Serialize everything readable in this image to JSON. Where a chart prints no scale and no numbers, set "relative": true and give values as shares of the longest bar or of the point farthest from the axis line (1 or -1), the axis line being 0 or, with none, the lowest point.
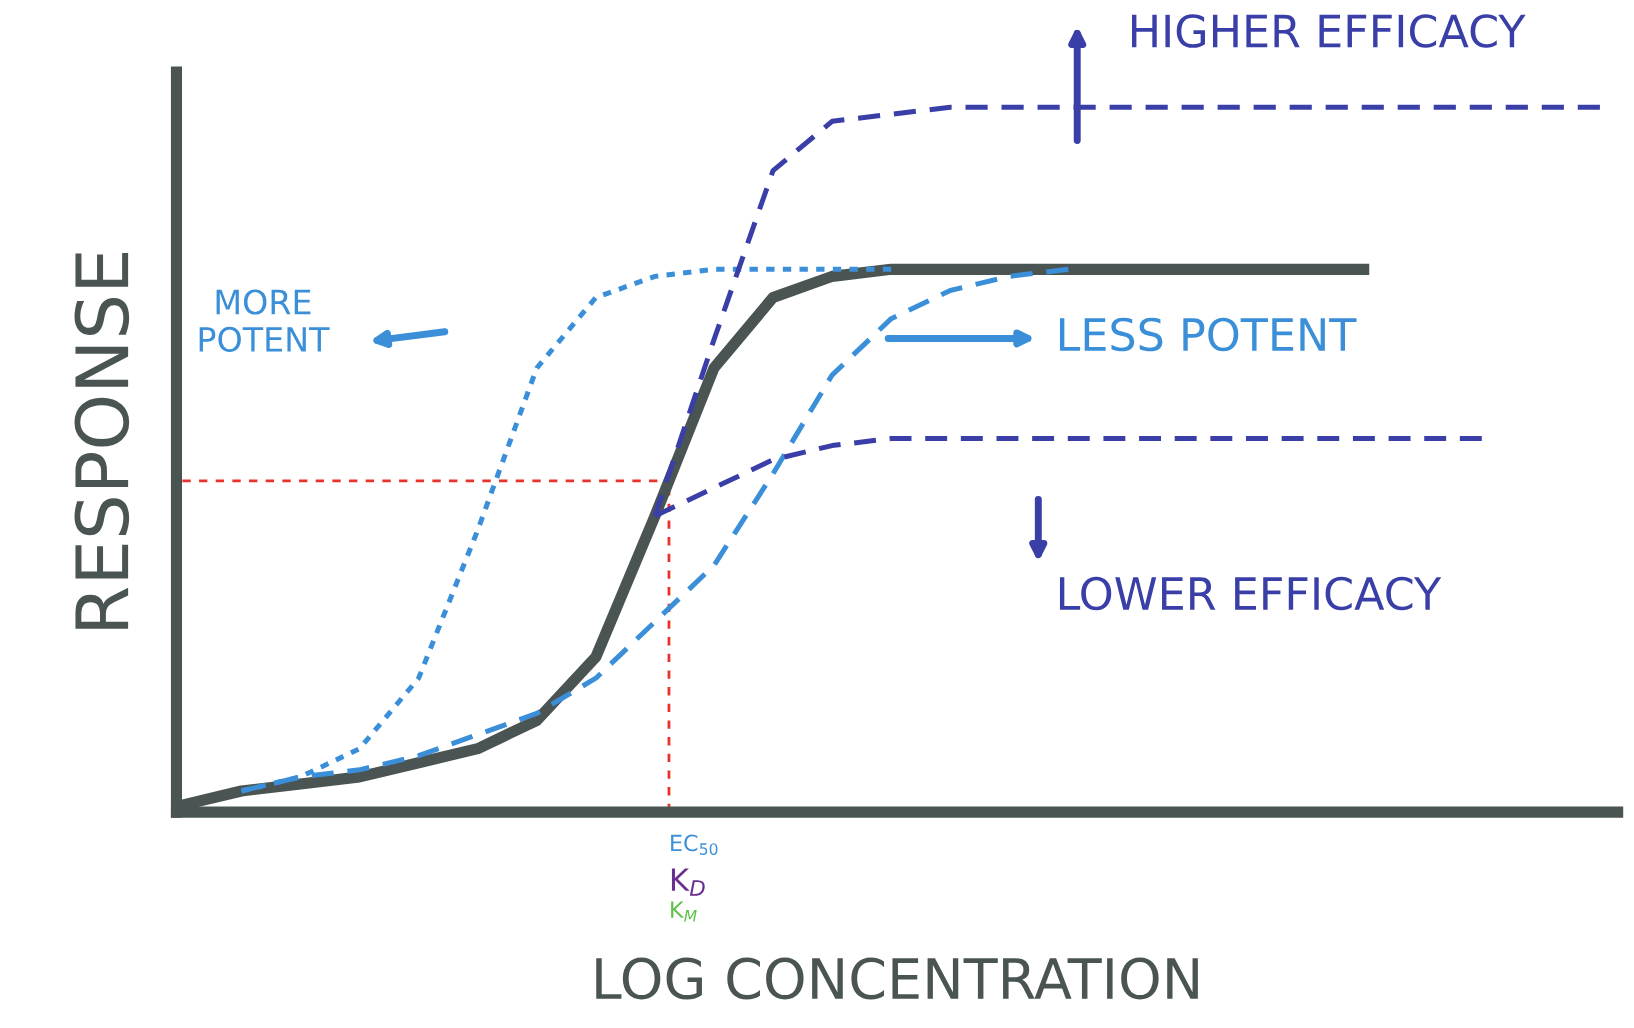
{
  "chart_data": {
    "type": "line",
    "relative": true,
    "xlabel": "LOG CONCENTRATION",
    "ylabel": "RESPONSE",
    "categories": [
      null,
      null,
      null,
      null,
      null,
      null,
      null,
      null,
      null,
      null,
      null,
      null,
      null,
      null,
      null,
      null,
      null,
      null,
      null,
      null,
      null,
      null,
      null,
      null,
      null
    ],
    "series": [
      {
        "color": "#4a5553",
        "line_style": "solid",
        "values": [
          0.01,
          0.03,
          0.04,
          0.05,
          0.07,
          0.09,
          0.13,
          0.22,
          0.42,
          0.63,
          0.73,
          0.76,
          0.77,
          0.77,
          0.77,
          0.77,
          0.77,
          0.77,
          0.77,
          0.77,
          0.77,
          null,
          null,
          null,
          null
        ]
      },
      {
        "color": "#3b8fd9",
        "line_style": "dotted",
        "values": [
          null,
          0.03,
          0.05,
          0.09,
          0.19,
          0.4,
          0.63,
          0.73,
          0.76,
          0.77,
          0.77,
          0.77,
          0.77,
          null,
          null,
          null,
          null,
          null,
          null,
          null,
          null,
          null,
          null,
          null,
          null
        ]
      },
      {
        "color": "#3b8fd9",
        "line_style": "dashed",
        "values": [
          null,
          0.03,
          0.05,
          0.06,
          0.08,
          0.11,
          0.14,
          0.19,
          0.27,
          0.35,
          0.48,
          0.62,
          0.7,
          0.74,
          0.76,
          0.77,
          null,
          null,
          null,
          null,
          null,
          null,
          null,
          null,
          null
        ]
      },
      {
        "color": "#3a3fa8",
        "line_style": "dashed",
        "values": [
          null,
          null,
          null,
          null,
          null,
          null,
          null,
          null,
          0.42,
          0.67,
          0.91,
          0.98,
          0.99,
          1.0,
          1.0,
          1.0,
          1.0,
          1.0,
          1.0,
          1.0,
          1.0,
          1.0,
          1.0,
          1.0,
          1.0
        ]
      },
      {
        "color": "#3a3fa8",
        "line_style": "dashed",
        "values": [
          null,
          null,
          null,
          null,
          null,
          null,
          null,
          null,
          0.42,
          0.46,
          0.5,
          0.52,
          0.53,
          0.53,
          0.53,
          0.53,
          0.53,
          0.53,
          0.53,
          0.53,
          0.53,
          0.53,
          0.53,
          null,
          null
        ]
      }
    ],
    "ref_lines": [
      {
        "axis": "y",
        "value": 0.47,
        "color": "#e8322b",
        "line_style": "dotted"
      }
    ],
    "annotations": [
      "MORE\nPOTENT",
      "LESS POTENT",
      "HIGHER EFFICACY",
      "LOWER EFFICACY",
      "EC$_{50}$",
      "K$_{D}$",
      "K$_{M}$"
    ]
  }
}
